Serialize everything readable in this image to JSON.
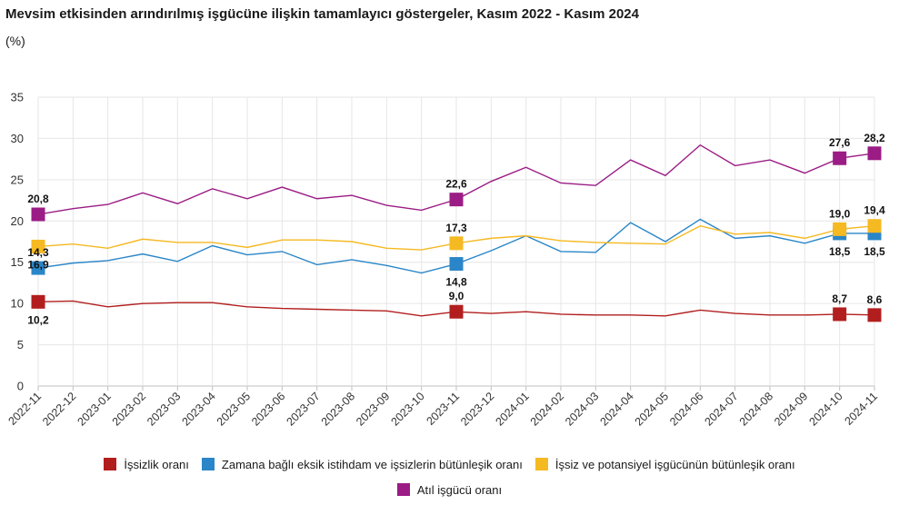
{
  "header": {
    "title": "Mevsim etkisinden arındırılmış işgücüne ilişkin tamamlayıcı göstergeler, Kasım 2022 - Kasım 2024",
    "subtitle": "(%)"
  },
  "chart_data": {
    "type": "line",
    "title": "Mevsim etkisinden arındırılmış işgücüne ilişkin tamamlayıcı göstergeler, Kasım 2022 - Kasım 2024",
    "ylabel": "(%)",
    "xlabel": "",
    "ylim": [
      0,
      35
    ],
    "yticks": [
      0,
      5,
      10,
      15,
      20,
      25,
      30,
      35
    ],
    "grid": true,
    "legend_position": "bottom",
    "categories": [
      "2022-11",
      "2022-12",
      "2023-01",
      "2023-02",
      "2023-03",
      "2023-04",
      "2023-05",
      "2023-06",
      "2023-07",
      "2023-08",
      "2023-09",
      "2023-10",
      "2023-11",
      "2023-12",
      "2024-01",
      "2024-02",
      "2024-03",
      "2024-04",
      "2024-05",
      "2024-06",
      "2024-07",
      "2024-08",
      "2024-09",
      "2024-10",
      "2024-11"
    ],
    "series": [
      {
        "name": "İşsizlik oranı",
        "color": "#b21e1e",
        "values": [
          10.2,
          10.3,
          9.6,
          10.0,
          10.1,
          10.1,
          9.6,
          9.4,
          9.3,
          9.2,
          9.1,
          8.5,
          9.0,
          8.8,
          9.0,
          8.7,
          8.6,
          8.6,
          8.5,
          9.2,
          8.8,
          8.6,
          8.6,
          8.7,
          8.6
        ],
        "labels": [
          {
            "index": 0,
            "text": "10,2",
            "pos": "below"
          },
          {
            "index": 12,
            "text": "9,0",
            "pos": "above"
          },
          {
            "index": 23,
            "text": "8,7",
            "pos": "above"
          },
          {
            "index": 24,
            "text": "8,6",
            "pos": "above"
          }
        ]
      },
      {
        "name": "Zamana bağlı eksik istihdam ve işsizlerin bütünleşik oranı",
        "color": "#2a86c8",
        "values": [
          14.3,
          14.9,
          15.2,
          16.0,
          15.1,
          17.0,
          15.9,
          16.3,
          14.7,
          15.3,
          14.6,
          13.7,
          14.8,
          16.4,
          18.2,
          16.3,
          16.2,
          19.8,
          17.5,
          20.2,
          17.9,
          18.2,
          17.3,
          18.5,
          18.5
        ],
        "labels": [
          {
            "index": 0,
            "text": "14,3",
            "pos": "above"
          },
          {
            "index": 12,
            "text": "14,8",
            "pos": "below"
          },
          {
            "index": 23,
            "text": "18,5",
            "pos": "below"
          },
          {
            "index": 24,
            "text": "18,5",
            "pos": "below"
          }
        ]
      },
      {
        "name": "İşsiz ve potansiyel işgücünün bütünleşik oranı",
        "color": "#f5b922",
        "values": [
          16.9,
          17.2,
          16.7,
          17.8,
          17.4,
          17.4,
          16.8,
          17.7,
          17.7,
          17.5,
          16.7,
          16.5,
          17.3,
          17.9,
          18.2,
          17.6,
          17.4,
          17.3,
          17.2,
          19.4,
          18.4,
          18.6,
          17.9,
          19.0,
          19.4
        ],
        "labels": [
          {
            "index": 0,
            "text": "16,9",
            "pos": "below"
          },
          {
            "index": 12,
            "text": "17,3",
            "pos": "above"
          },
          {
            "index": 23,
            "text": "19,0",
            "pos": "above"
          },
          {
            "index": 24,
            "text": "19,4",
            "pos": "above"
          }
        ]
      },
      {
        "name": "Atıl işgücü oranı",
        "color": "#9b1c85",
        "values": [
          20.8,
          21.5,
          22.0,
          23.4,
          22.1,
          23.9,
          22.7,
          24.1,
          22.7,
          23.1,
          21.9,
          21.3,
          22.6,
          24.8,
          26.5,
          24.6,
          24.3,
          27.4,
          25.5,
          29.2,
          26.7,
          27.4,
          25.8,
          27.6,
          28.2
        ],
        "labels": [
          {
            "index": 0,
            "text": "20,8",
            "pos": "above"
          },
          {
            "index": 12,
            "text": "22,6",
            "pos": "above"
          },
          {
            "index": 23,
            "text": "27,6",
            "pos": "above"
          },
          {
            "index": 24,
            "text": "28,2",
            "pos": "above"
          }
        ]
      }
    ],
    "colors": {
      "grid": "#e6e6e6",
      "axis": "#bfbfbf",
      "label": "#111111"
    }
  }
}
